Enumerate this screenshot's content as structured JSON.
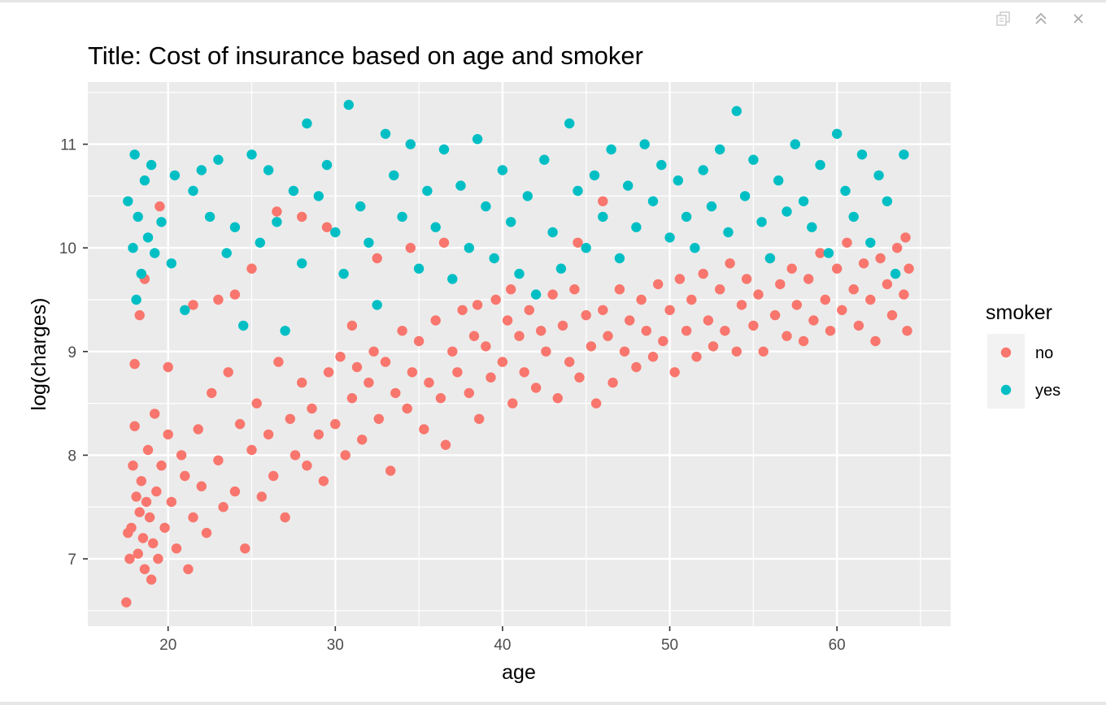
{
  "toolbar": {
    "icons": [
      "popout-icon",
      "collapse-icon",
      "close-icon"
    ]
  },
  "chart_data": {
    "type": "scatter",
    "title": "Title: Cost of insurance based on age and smoker",
    "xlabel": "age",
    "ylabel": "log(charges)",
    "xlim": [
      15.2,
      66.8
    ],
    "ylim": [
      6.35,
      11.6
    ],
    "xticks": [
      20,
      30,
      40,
      50,
      60
    ],
    "yticks": [
      7,
      8,
      9,
      10,
      11
    ],
    "grid": true,
    "panel_background": "#ebebeb",
    "legend": {
      "title": "smoker",
      "position": "right",
      "entries": [
        {
          "label": "no",
          "color": "#f8766d"
        },
        {
          "label": "yes",
          "color": "#00bfc4"
        }
      ]
    },
    "series": [
      {
        "name": "no",
        "color": "#f8766d",
        "points": [
          [
            17.5,
            6.58
          ],
          [
            17.6,
            7.25
          ],
          [
            17.7,
            7.0
          ],
          [
            17.8,
            7.3
          ],
          [
            17.9,
            7.9
          ],
          [
            18.0,
            8.28
          ],
          [
            18.1,
            7.6
          ],
          [
            18.2,
            7.05
          ],
          [
            18.3,
            7.45
          ],
          [
            18.4,
            7.75
          ],
          [
            18.5,
            7.2
          ],
          [
            18.6,
            6.9
          ],
          [
            18.7,
            7.55
          ],
          [
            18.8,
            8.05
          ],
          [
            18.9,
            7.4
          ],
          [
            19.0,
            6.8
          ],
          [
            19.1,
            7.15
          ],
          [
            19.2,
            8.4
          ],
          [
            19.3,
            7.65
          ],
          [
            19.4,
            7.0
          ],
          [
            19.6,
            7.9
          ],
          [
            19.8,
            7.3
          ],
          [
            20.0,
            8.2
          ],
          [
            20.2,
            7.55
          ],
          [
            20.5,
            7.1
          ],
          [
            20.8,
            8.0
          ],
          [
            21.0,
            7.8
          ],
          [
            21.2,
            6.9
          ],
          [
            21.5,
            7.4
          ],
          [
            21.8,
            8.25
          ],
          [
            22.0,
            7.7
          ],
          [
            22.3,
            7.25
          ],
          [
            22.6,
            8.6
          ],
          [
            23.0,
            7.95
          ],
          [
            23.3,
            7.5
          ],
          [
            23.6,
            8.8
          ],
          [
            24.0,
            7.65
          ],
          [
            24.3,
            8.3
          ],
          [
            24.6,
            7.1
          ],
          [
            25.0,
            8.05
          ],
          [
            25.3,
            8.5
          ],
          [
            25.6,
            7.6
          ],
          [
            26.0,
            8.2
          ],
          [
            26.3,
            7.8
          ],
          [
            26.6,
            8.9
          ],
          [
            27.0,
            7.4
          ],
          [
            27.3,
            8.35
          ],
          [
            27.6,
            8.0
          ],
          [
            28.0,
            8.7
          ],
          [
            28.3,
            7.9
          ],
          [
            28.6,
            8.45
          ],
          [
            29.0,
            8.2
          ],
          [
            29.3,
            7.75
          ],
          [
            29.6,
            8.8
          ],
          [
            30.0,
            8.3
          ],
          [
            30.3,
            8.95
          ],
          [
            30.6,
            8.0
          ],
          [
            31.0,
            8.55
          ],
          [
            31.3,
            8.85
          ],
          [
            31.6,
            8.15
          ],
          [
            32.0,
            8.7
          ],
          [
            32.3,
            9.0
          ],
          [
            32.6,
            8.35
          ],
          [
            33.0,
            8.9
          ],
          [
            33.3,
            7.85
          ],
          [
            33.6,
            8.6
          ],
          [
            34.0,
            9.2
          ],
          [
            34.3,
            8.45
          ],
          [
            34.6,
            8.8
          ],
          [
            35.0,
            9.1
          ],
          [
            35.3,
            8.25
          ],
          [
            35.6,
            8.7
          ],
          [
            36.0,
            9.3
          ],
          [
            36.3,
            8.55
          ],
          [
            36.6,
            8.1
          ],
          [
            37.0,
            9.0
          ],
          [
            37.3,
            8.8
          ],
          [
            37.6,
            9.4
          ],
          [
            38.0,
            8.6
          ],
          [
            38.3,
            9.15
          ],
          [
            38.6,
            8.35
          ],
          [
            39.0,
            9.05
          ],
          [
            39.3,
            8.75
          ],
          [
            39.6,
            9.5
          ],
          [
            40.0,
            8.9
          ],
          [
            40.3,
            9.3
          ],
          [
            40.6,
            8.5
          ],
          [
            41.0,
            9.15
          ],
          [
            41.3,
            8.8
          ],
          [
            41.6,
            9.4
          ],
          [
            42.0,
            8.65
          ],
          [
            42.3,
            9.2
          ],
          [
            42.6,
            9.0
          ],
          [
            43.0,
            9.55
          ],
          [
            43.3,
            8.55
          ],
          [
            43.6,
            9.25
          ],
          [
            44.0,
            8.9
          ],
          [
            44.3,
            9.6
          ],
          [
            44.6,
            8.75
          ],
          [
            45.0,
            9.35
          ],
          [
            45.3,
            9.05
          ],
          [
            45.6,
            8.5
          ],
          [
            46.0,
            9.4
          ],
          [
            46.3,
            9.15
          ],
          [
            46.6,
            8.7
          ],
          [
            47.0,
            9.6
          ],
          [
            47.3,
            9.0
          ],
          [
            47.6,
            9.3
          ],
          [
            48.0,
            8.85
          ],
          [
            48.3,
            9.5
          ],
          [
            48.6,
            9.2
          ],
          [
            49.0,
            8.95
          ],
          [
            49.3,
            9.65
          ],
          [
            49.6,
            9.1
          ],
          [
            50.0,
            9.4
          ],
          [
            50.3,
            8.8
          ],
          [
            50.6,
            9.7
          ],
          [
            51.0,
            9.2
          ],
          [
            51.3,
            9.5
          ],
          [
            51.6,
            8.95
          ],
          [
            52.0,
            9.75
          ],
          [
            52.3,
            9.3
          ],
          [
            52.6,
            9.05
          ],
          [
            53.0,
            9.6
          ],
          [
            53.3,
            9.2
          ],
          [
            53.6,
            9.85
          ],
          [
            54.0,
            9.0
          ],
          [
            54.3,
            9.45
          ],
          [
            54.6,
            9.7
          ],
          [
            55.0,
            9.25
          ],
          [
            55.3,
            9.55
          ],
          [
            55.6,
            9.0
          ],
          [
            56.0,
            9.9
          ],
          [
            56.3,
            9.35
          ],
          [
            56.6,
            9.65
          ],
          [
            57.0,
            9.15
          ],
          [
            57.3,
            9.8
          ],
          [
            57.6,
            9.45
          ],
          [
            58.0,
            9.1
          ],
          [
            58.3,
            9.7
          ],
          [
            58.6,
            9.3
          ],
          [
            59.0,
            9.95
          ],
          [
            59.3,
            9.5
          ],
          [
            59.6,
            9.2
          ],
          [
            60.0,
            9.8
          ],
          [
            60.3,
            9.4
          ],
          [
            60.6,
            10.05
          ],
          [
            61.0,
            9.6
          ],
          [
            61.3,
            9.25
          ],
          [
            61.6,
            9.85
          ],
          [
            62.0,
            9.5
          ],
          [
            62.3,
            9.1
          ],
          [
            62.6,
            9.9
          ],
          [
            63.0,
            9.65
          ],
          [
            63.3,
            9.35
          ],
          [
            63.6,
            10.0
          ],
          [
            64.0,
            9.55
          ],
          [
            64.2,
            9.2
          ],
          [
            64.3,
            9.8
          ],
          [
            64.1,
            10.1
          ],
          [
            18.0,
            8.88
          ],
          [
            18.3,
            9.35
          ],
          [
            18.6,
            9.7
          ],
          [
            19.5,
            10.4
          ],
          [
            20.0,
            8.85
          ],
          [
            21.5,
            9.45
          ],
          [
            23.0,
            9.5
          ],
          [
            24.0,
            9.55
          ],
          [
            25.0,
            9.8
          ],
          [
            26.5,
            10.35
          ],
          [
            28.0,
            10.3
          ],
          [
            29.5,
            10.2
          ],
          [
            31.0,
            9.25
          ],
          [
            32.5,
            9.9
          ],
          [
            34.5,
            10.0
          ],
          [
            36.5,
            10.05
          ],
          [
            38.5,
            9.45
          ],
          [
            40.5,
            9.6
          ],
          [
            44.5,
            10.05
          ],
          [
            46.0,
            10.45
          ]
        ]
      },
      {
        "name": "yes",
        "color": "#00bfc4",
        "points": [
          [
            17.6,
            10.45
          ],
          [
            17.9,
            10.0
          ],
          [
            18.0,
            10.9
          ],
          [
            18.1,
            9.5
          ],
          [
            18.2,
            10.3
          ],
          [
            18.4,
            9.75
          ],
          [
            18.6,
            10.65
          ],
          [
            18.8,
            10.1
          ],
          [
            19.0,
            10.8
          ],
          [
            19.2,
            9.95
          ],
          [
            19.6,
            10.25
          ],
          [
            20.2,
            9.85
          ],
          [
            20.4,
            10.7
          ],
          [
            21.0,
            9.4
          ],
          [
            21.5,
            10.55
          ],
          [
            22.0,
            10.75
          ],
          [
            22.5,
            10.3
          ],
          [
            23.0,
            10.85
          ],
          [
            23.5,
            9.95
          ],
          [
            24.0,
            10.2
          ],
          [
            24.5,
            9.25
          ],
          [
            25.0,
            10.9
          ],
          [
            25.5,
            10.05
          ],
          [
            26.0,
            10.75
          ],
          [
            26.5,
            10.25
          ],
          [
            27.0,
            9.2
          ],
          [
            27.5,
            10.55
          ],
          [
            28.0,
            9.85
          ],
          [
            28.3,
            11.2
          ],
          [
            29.0,
            10.5
          ],
          [
            29.5,
            10.8
          ],
          [
            30.0,
            10.15
          ],
          [
            30.5,
            9.75
          ],
          [
            30.8,
            11.38
          ],
          [
            31.5,
            10.4
          ],
          [
            32.0,
            10.05
          ],
          [
            32.5,
            9.45
          ],
          [
            33.0,
            11.1
          ],
          [
            33.5,
            10.7
          ],
          [
            34.0,
            10.3
          ],
          [
            34.5,
            11.0
          ],
          [
            35.0,
            9.8
          ],
          [
            35.5,
            10.55
          ],
          [
            36.0,
            10.2
          ],
          [
            36.5,
            10.95
          ],
          [
            37.0,
            9.7
          ],
          [
            37.5,
            10.6
          ],
          [
            38.0,
            10.0
          ],
          [
            38.5,
            11.05
          ],
          [
            39.0,
            10.4
          ],
          [
            39.5,
            9.9
          ],
          [
            40.0,
            10.75
          ],
          [
            40.5,
            10.25
          ],
          [
            41.0,
            9.75
          ],
          [
            41.5,
            10.5
          ],
          [
            42.0,
            9.55
          ],
          [
            42.5,
            10.85
          ],
          [
            43.0,
            10.15
          ],
          [
            43.5,
            9.8
          ],
          [
            44.0,
            11.2
          ],
          [
            44.5,
            10.55
          ],
          [
            45.0,
            10.0
          ],
          [
            45.5,
            10.7
          ],
          [
            46.0,
            10.3
          ],
          [
            46.5,
            10.95
          ],
          [
            47.0,
            9.9
          ],
          [
            47.5,
            10.6
          ],
          [
            48.0,
            10.2
          ],
          [
            48.5,
            11.0
          ],
          [
            49.0,
            10.45
          ],
          [
            49.5,
            10.8
          ],
          [
            50.0,
            10.1
          ],
          [
            50.5,
            10.65
          ],
          [
            51.0,
            10.3
          ],
          [
            51.5,
            10.0
          ],
          [
            52.0,
            10.75
          ],
          [
            52.5,
            10.4
          ],
          [
            53.0,
            10.95
          ],
          [
            53.5,
            10.15
          ],
          [
            54.0,
            11.32
          ],
          [
            54.5,
            10.5
          ],
          [
            55.0,
            10.85
          ],
          [
            55.5,
            10.25
          ],
          [
            56.0,
            9.9
          ],
          [
            56.5,
            10.65
          ],
          [
            57.0,
            10.35
          ],
          [
            57.5,
            11.0
          ],
          [
            58.0,
            10.45
          ],
          [
            58.5,
            10.2
          ],
          [
            59.0,
            10.8
          ],
          [
            59.5,
            9.95
          ],
          [
            60.0,
            11.1
          ],
          [
            60.5,
            10.55
          ],
          [
            61.0,
            10.3
          ],
          [
            61.5,
            10.9
          ],
          [
            62.0,
            10.05
          ],
          [
            62.5,
            10.7
          ],
          [
            63.0,
            10.45
          ],
          [
            63.5,
            9.75
          ],
          [
            64.0,
            10.9
          ]
        ]
      }
    ]
  }
}
